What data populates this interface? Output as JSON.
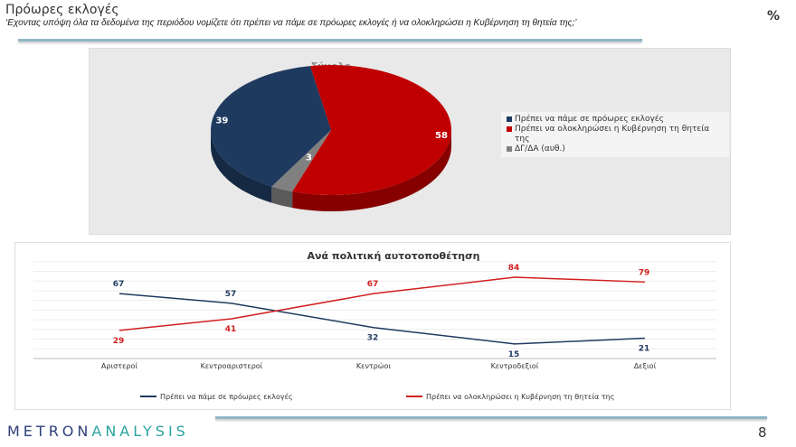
{
  "header": {
    "title": "Πρόωρες εκλογές",
    "subtitle": "‘Εχοντας υπόψη όλα τα δεδομένα της περιόδου νομίζετε ότι πρέπει να πάμε σε πρόωρες εκλογές ή να ολοκληρώσει η Κυβέρνηση τη θητεία της;’",
    "unit": "%"
  },
  "footer": {
    "logo_a": "METRON",
    "logo_b": "ANALYSIS",
    "page": "8"
  },
  "chart_data": [
    {
      "type": "pie",
      "title": "Σύνολο",
      "legend_position": "right",
      "categories": [
        "Πρέπει να πάμε σε πρόωρες εκλογές",
        "Πρέπει να ολοκληρώσει η Κυβέρνηση τη θητεία της",
        "ΔΓ/ΔΑ (αυθ.)"
      ],
      "values": [
        39,
        58,
        3
      ],
      "colors": [
        "#1f3a5f",
        "#c00000",
        "#808080"
      ]
    },
    {
      "type": "line",
      "title": "Ανά πολιτική αυτοτοποθέτηση",
      "categories": [
        "Αριστεροί",
        "Κεντροαριστεροί",
        "Κεντρώοι",
        "Κεντροδεξιοί",
        "Δεξιοί"
      ],
      "legend_position": "bottom",
      "grid": true,
      "series": [
        {
          "name": "Πρέπει να πάμε σε πρόωρες εκλογές",
          "values": [
            67,
            57,
            32,
            15,
            21
          ],
          "color": "#1f3a5f"
        },
        {
          "name": "Πρέπει να ολοκληρώσει η Κυβέρνηση τη θητεία της",
          "values": [
            29,
            41,
            67,
            84,
            79
          ],
          "color": "#d11f1f"
        }
      ]
    }
  ]
}
